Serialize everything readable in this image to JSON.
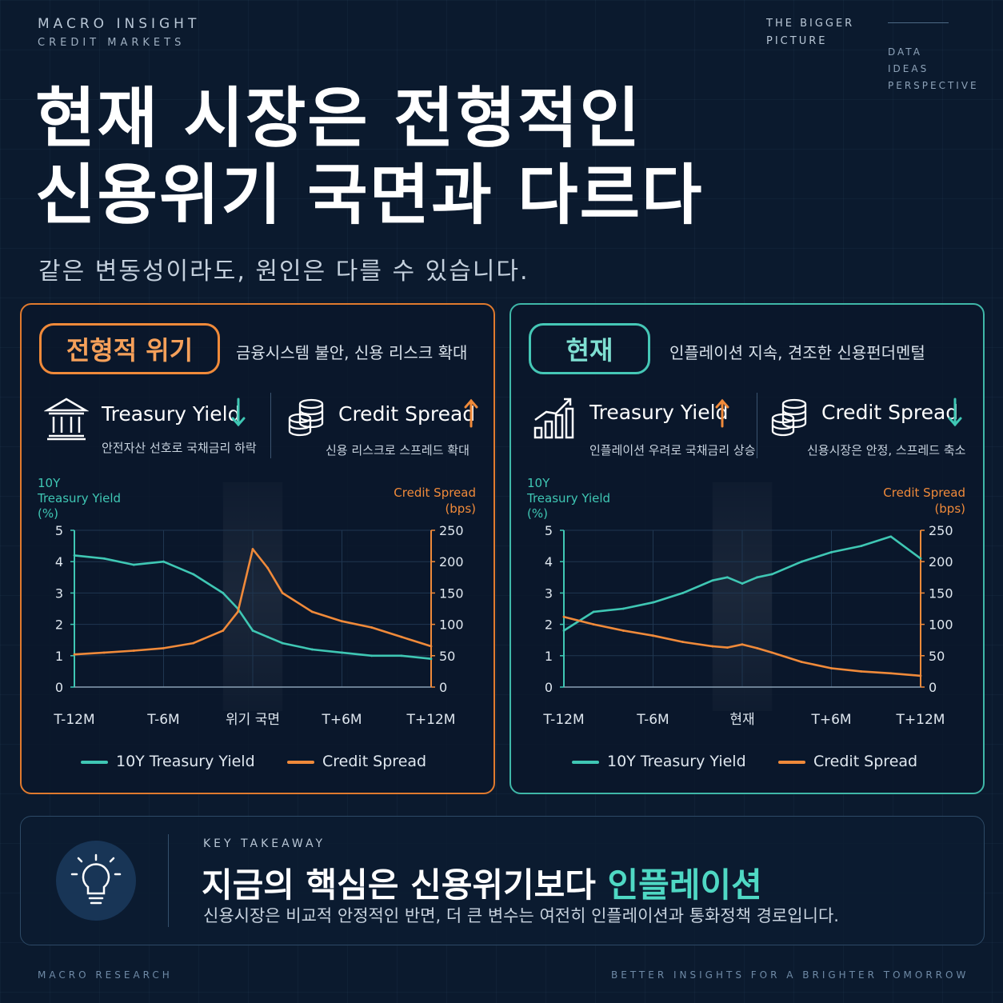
{
  "header": {
    "brand_line1": "MACRO INSIGHT",
    "brand_line2": "CREDIT MARKETS",
    "bigger_line1": "THE BIGGER",
    "bigger_line2": "PICTURE",
    "tags": [
      "DATA",
      "IDEAS",
      "PERSPECTIVE"
    ],
    "title_line1": "현재 시장은 전형적인",
    "title_line2": "신용위기 국면과 다르다",
    "subtitle": "같은 변동성이라도, 원인은 다를 수 있습니다."
  },
  "colors": {
    "accent_orange": "#f08a3a",
    "accent_teal": "#3fc7b4",
    "background": "#0b1a2e"
  },
  "left_panel": {
    "pill": "전형적 위기",
    "description": "금융시스템 불안, 신용 리스크 확대",
    "metric1": {
      "icon": "bank-icon",
      "title": "Treasury Yield",
      "direction": "down",
      "desc": "안전자산 선호로 국채금리 하락"
    },
    "metric2": {
      "icon": "coins-icon",
      "title": "Credit Spread",
      "direction": "up",
      "desc": "신용 리스크로 스프레드 확대"
    }
  },
  "right_panel": {
    "pill": "현재",
    "description": "인플레이션 지속, 견조한 신용펀더멘털",
    "metric1": {
      "icon": "growth-chart-icon",
      "title": "Treasury Yield",
      "direction": "up",
      "desc": "인플레이션 우려로 국채금리 상승"
    },
    "metric2": {
      "icon": "coins-icon",
      "title": "Credit Spread",
      "direction": "down",
      "desc": "신용시장은 안정, 스프레드 축소"
    }
  },
  "legend": {
    "yield": "10Y Treasury Yield",
    "spread": "Credit Spread"
  },
  "chart_data": [
    {
      "type": "line",
      "left_axis_label": [
        "10Y",
        "Treasury Yield",
        "(%)"
      ],
      "right_axis_label": [
        "Credit Spread",
        "(bps)"
      ],
      "x_tick_labels": [
        "T-12M",
        "T-6M",
        "위기 국면",
        "T+6M",
        "T+12M"
      ],
      "x": [
        -12,
        -10,
        -8,
        -6,
        -4,
        -2,
        -1,
        0,
        1,
        2,
        4,
        6,
        8,
        10,
        12
      ],
      "ylim_left": [
        0,
        5
      ],
      "ylim_right": [
        0,
        250
      ],
      "yticks_left": [
        0,
        1,
        2,
        3,
        4,
        5
      ],
      "yticks_right": [
        0,
        50,
        100,
        150,
        200,
        250
      ],
      "series": [
        {
          "name": "10Y Treasury Yield",
          "axis": "left",
          "color": "#3fc7b4",
          "values": [
            4.2,
            4.1,
            3.9,
            4.0,
            3.6,
            3.0,
            2.5,
            1.8,
            1.6,
            1.4,
            1.2,
            1.1,
            1.0,
            1.0,
            0.9
          ]
        },
        {
          "name": "Credit Spread",
          "axis": "right",
          "color": "#f08a3a",
          "values": [
            52,
            55,
            58,
            62,
            70,
            90,
            120,
            220,
            190,
            150,
            120,
            105,
            95,
            80,
            65
          ]
        }
      ],
      "highlight_region": "위기 국면"
    },
    {
      "type": "line",
      "left_axis_label": [
        "10Y",
        "Treasury Yield",
        "(%)"
      ],
      "right_axis_label": [
        "Credit Spread",
        "(bps)"
      ],
      "x_tick_labels": [
        "T-12M",
        "T-6M",
        "현재",
        "T+6M",
        "T+12M"
      ],
      "x": [
        -12,
        -10,
        -8,
        -6,
        -4,
        -2,
        -1,
        0,
        1,
        2,
        4,
        6,
        8,
        10,
        12
      ],
      "ylim_left": [
        0,
        5
      ],
      "ylim_right": [
        0,
        250
      ],
      "yticks_left": [
        0,
        1,
        2,
        3,
        4,
        5
      ],
      "yticks_right": [
        0,
        50,
        100,
        150,
        200,
        250
      ],
      "series": [
        {
          "name": "10Y Treasury Yield",
          "axis": "left",
          "color": "#3fc7b4",
          "values": [
            1.8,
            2.4,
            2.5,
            2.7,
            3.0,
            3.4,
            3.5,
            3.3,
            3.5,
            3.6,
            4.0,
            4.3,
            4.5,
            4.8,
            4.1
          ]
        },
        {
          "name": "Credit Spread",
          "axis": "right",
          "color": "#f08a3a",
          "values": [
            112,
            100,
            90,
            82,
            72,
            65,
            63,
            68,
            62,
            55,
            40,
            30,
            25,
            22,
            18
          ]
        }
      ],
      "highlight_region": "현재"
    }
  ],
  "takeaway": {
    "label": "KEY TAKEAWAY",
    "headline_prefix": "지금의 핵심은 신용위기보다 ",
    "headline_highlight": "인플레이션",
    "body": "신용시장은 비교적 안정적인 반면, 더 큰 변수는 여전히 인플레이션과 통화정책 경로입니다."
  },
  "footer": {
    "left": "MACRO RESEARCH",
    "right": "BETTER INSIGHTS FOR A BRIGHTER TOMORROW"
  }
}
